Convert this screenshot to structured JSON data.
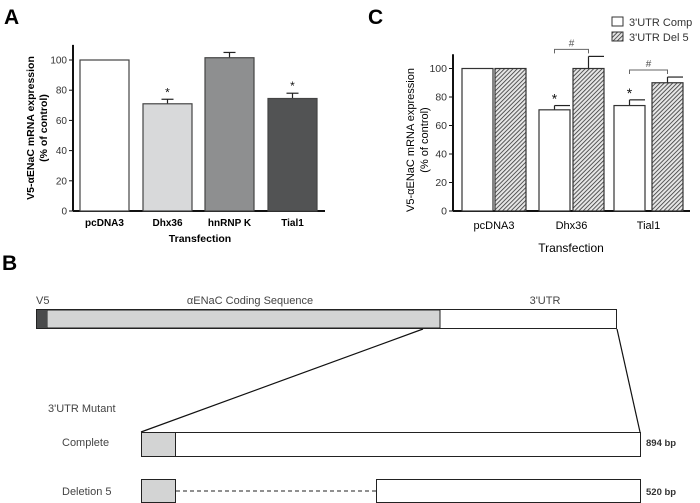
{
  "panels": {
    "a": "A",
    "b": "B",
    "c": "C"
  },
  "chart_data": [
    {
      "type": "bar",
      "panel": "A",
      "categories": [
        "pcDNA3",
        "Dhx36",
        "hnRNP K",
        "Tial1"
      ],
      "values": [
        100,
        71,
        101.5,
        74.5
      ],
      "errors": [
        0,
        3,
        3.5,
        3.5
      ],
      "colors": [
        "#ffffff",
        "#d8d9da",
        "#8e8f90",
        "#525354"
      ],
      "annotations": [
        "",
        "*",
        "",
        "*"
      ],
      "xlabel": "Transfection",
      "ylabel": "V5-αENaC mRNA expression",
      "ylabel2": "(% of control)",
      "ylim": [
        0,
        110
      ],
      "yticks": [
        "0",
        "20",
        "40",
        "60",
        "80",
        "100"
      ],
      "grid": false
    },
    {
      "type": "bar",
      "panel": "C",
      "categories": [
        "pcDNA3",
        "Dhx36",
        "Tial1"
      ],
      "series": [
        {
          "name": "3'UTR Comp",
          "values": [
            100,
            71,
            74
          ],
          "errors": [
            0,
            3,
            4
          ],
          "annotations": [
            "",
            "*",
            "*"
          ],
          "fill": "#ffffff"
        },
        {
          "name": "3'UTR Del 5",
          "values": [
            100,
            100,
            90
          ],
          "errors": [
            0,
            8.5,
            4
          ],
          "fill": "hatched"
        }
      ],
      "comparisons": [
        {
          "category": "Dhx36",
          "label": "#"
        },
        {
          "category": "Tial1",
          "label": "#"
        }
      ],
      "xlabel": "Transfection",
      "ylabel": "V5-αENaC mRNA expression",
      "ylabel2": "(% of control)",
      "ylim": [
        0,
        110
      ],
      "yticks": [
        "0",
        "20",
        "40",
        "60",
        "80",
        "100"
      ],
      "legend": "top-right",
      "grid": false
    }
  ],
  "diagram": {
    "v5": "V5",
    "coding": "αENaC Coding Sequence",
    "utr": "3'UTR",
    "mutant_label": "3'UTR Mutant",
    "complete": "Complete",
    "complete_size": "894 bp",
    "deletion": "Deletion 5",
    "deletion_size": "520 bp",
    "colors": {
      "v5": "#4a4b4c",
      "coding": "#d3d4d4"
    }
  }
}
